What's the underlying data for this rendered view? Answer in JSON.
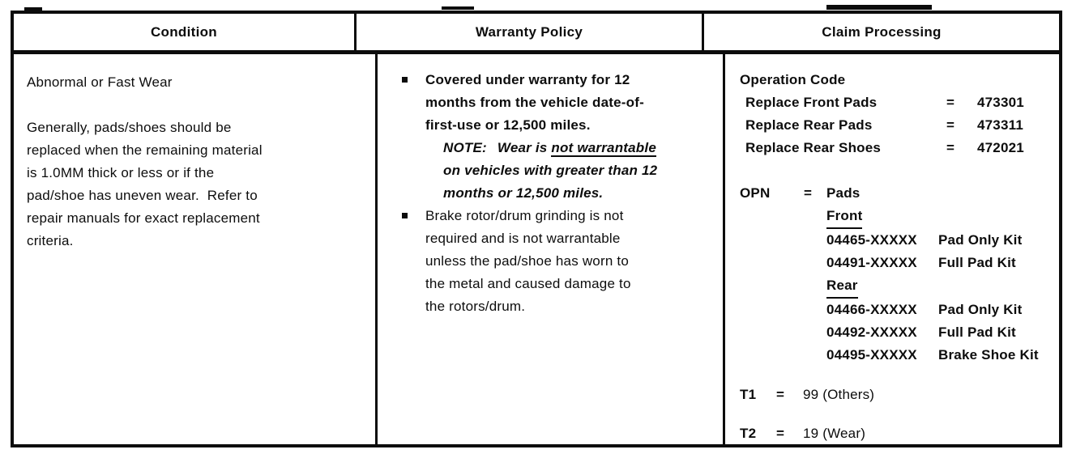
{
  "colors": {
    "ink": "#0c0c0c",
    "paper": "#ffffff"
  },
  "headers": {
    "condition": "Condition",
    "warranty": "Warranty Policy",
    "claim": "Claim Processing"
  },
  "condition": {
    "title": "Abnormal or Fast Wear",
    "body_lines": [
      "Generally, pads/shoes should be",
      "replaced when the remaining material",
      "is 1.0MM thick or less or if the",
      "pad/shoe has uneven wear.  Refer to",
      "repair manuals for exact replacement",
      "criteria."
    ]
  },
  "warranty": {
    "bullet1_lines": [
      "Covered under warranty for 12",
      "months from the vehicle date-of-",
      "first-use or 12,500 miles."
    ],
    "note": {
      "label": "NOTE:",
      "line1_pre": "Wear is ",
      "line1_underlined": "not warrantable",
      "line2": "on vehicles with greater than 12",
      "line3": "months or 12,500 miles."
    },
    "bullet2_lines": [
      "Brake rotor/drum grinding is not",
      "required and is not warrantable",
      "unless the pad/shoe has worn to",
      "the metal and caused damage to",
      "the rotors/drum."
    ]
  },
  "claim": {
    "operation_code_title": "Operation Code",
    "operations": [
      {
        "label": "Replace Front Pads",
        "eq": "=",
        "code": "473301"
      },
      {
        "label": "Replace Rear Pads",
        "eq": "=",
        "code": "473311"
      },
      {
        "label": "Replace Rear Shoes",
        "eq": "=",
        "code": "472021"
      }
    ],
    "opn": {
      "label": "OPN",
      "eq": "=",
      "value": "Pads"
    },
    "front": {
      "label": "Front",
      "parts": [
        {
          "number": "04465-XXXXX",
          "description": "Pad Only Kit"
        },
        {
          "number": "04491-XXXXX",
          "description": "Full Pad Kit"
        }
      ]
    },
    "rear": {
      "label": "Rear",
      "parts": [
        {
          "number": "04466-XXXXX",
          "description": "Pad Only Kit"
        },
        {
          "number": "04492-XXXXX",
          "description": "Full Pad Kit"
        },
        {
          "number": "04495-XXXXX",
          "description": "Brake Shoe Kit"
        }
      ]
    },
    "t1": {
      "label": "T1",
      "eq": "=",
      "value": "99 (Others)"
    },
    "t2": {
      "label": "T2",
      "eq": "=",
      "value": "19 (Wear)"
    }
  }
}
